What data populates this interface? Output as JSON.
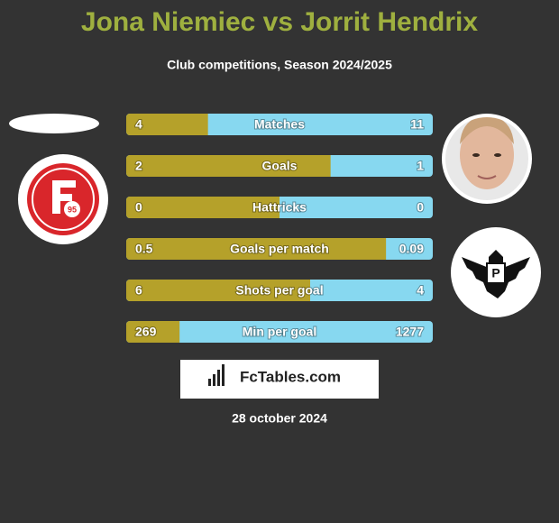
{
  "header": {
    "title": "Jona Niemiec vs Jorrit Hendrix",
    "subtitle": "Club competitions, Season 2024/2025"
  },
  "rows": [
    {
      "label": "Matches",
      "left": 4,
      "right": 11
    },
    {
      "label": "Goals",
      "left": 2,
      "right": 1
    },
    {
      "label": "Hattricks",
      "left": 0,
      "right": 0
    },
    {
      "label": "Goals per match",
      "left": 0.5,
      "right": 0.09
    },
    {
      "label": "Shots per goal",
      "left": 6,
      "right": 4
    },
    {
      "label": "Min per goal",
      "left": 269,
      "right": 1277
    }
  ],
  "colors": {
    "left": "#b5a12a",
    "right": "#87d8f0"
  },
  "brand": "FcTables.com",
  "date": "28 october 2024"
}
